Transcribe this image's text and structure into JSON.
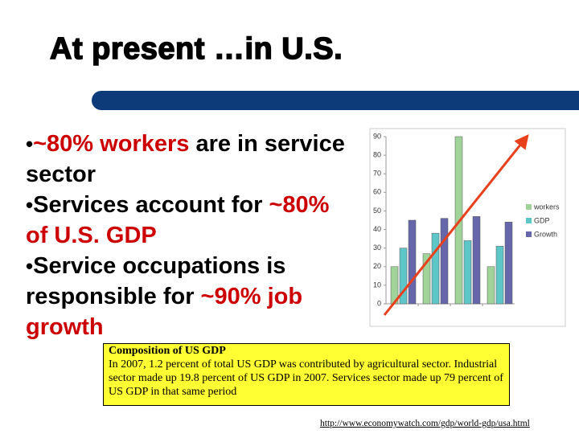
{
  "slide_title": "At present …in  U.S.",
  "bullets": [
    {
      "runs": [
        {
          "text": "~80%  ",
          "color": "#cc0000"
        },
        {
          "text": "workers",
          "color": "#cc0000"
        },
        {
          "text": " are in service sector",
          "color": "#000000"
        }
      ]
    },
    {
      "runs": [
        {
          "text": "Services account for ",
          "color": "#000000"
        },
        {
          "text": "~80% of U.S. GDP",
          "color": "#cc0000"
        }
      ]
    },
    {
      "runs": [
        {
          "text": "Service occupations is  responsible for ",
          "color": "#000000"
        },
        {
          "text": "~90% job growth",
          "color": "#cc0000"
        }
      ]
    }
  ],
  "chart_data": {
    "type": "bar",
    "categories": [
      null,
      null,
      null,
      null
    ],
    "series": [
      {
        "name": "workers",
        "color": "#9fd39a",
        "values": [
          20,
          27,
          90,
          20
        ]
      },
      {
        "name": "GDP",
        "color": "#5ec6c9",
        "values": [
          30,
          38,
          34,
          31
        ]
      },
      {
        "name": "Growth",
        "color": "#6666aa",
        "values": [
          45,
          46,
          47,
          44
        ]
      }
    ],
    "ylim": [
      0,
      90
    ],
    "yticks": [
      0,
      10,
      20,
      30,
      40,
      50,
      60,
      70,
      80,
      90
    ],
    "legend": "right"
  },
  "note": {
    "title": "Composition of US GDP",
    "body": "In 2007, 1.2 percent of total US GDP was contributed by agricultural sector. Industrial sector made up 19.8 percent of US GDP in 2007. Services sector made up 79 percent of US GDP in that same period"
  },
  "link": "http://www.economywatch.com/gdp/world-gdp/usa.html"
}
